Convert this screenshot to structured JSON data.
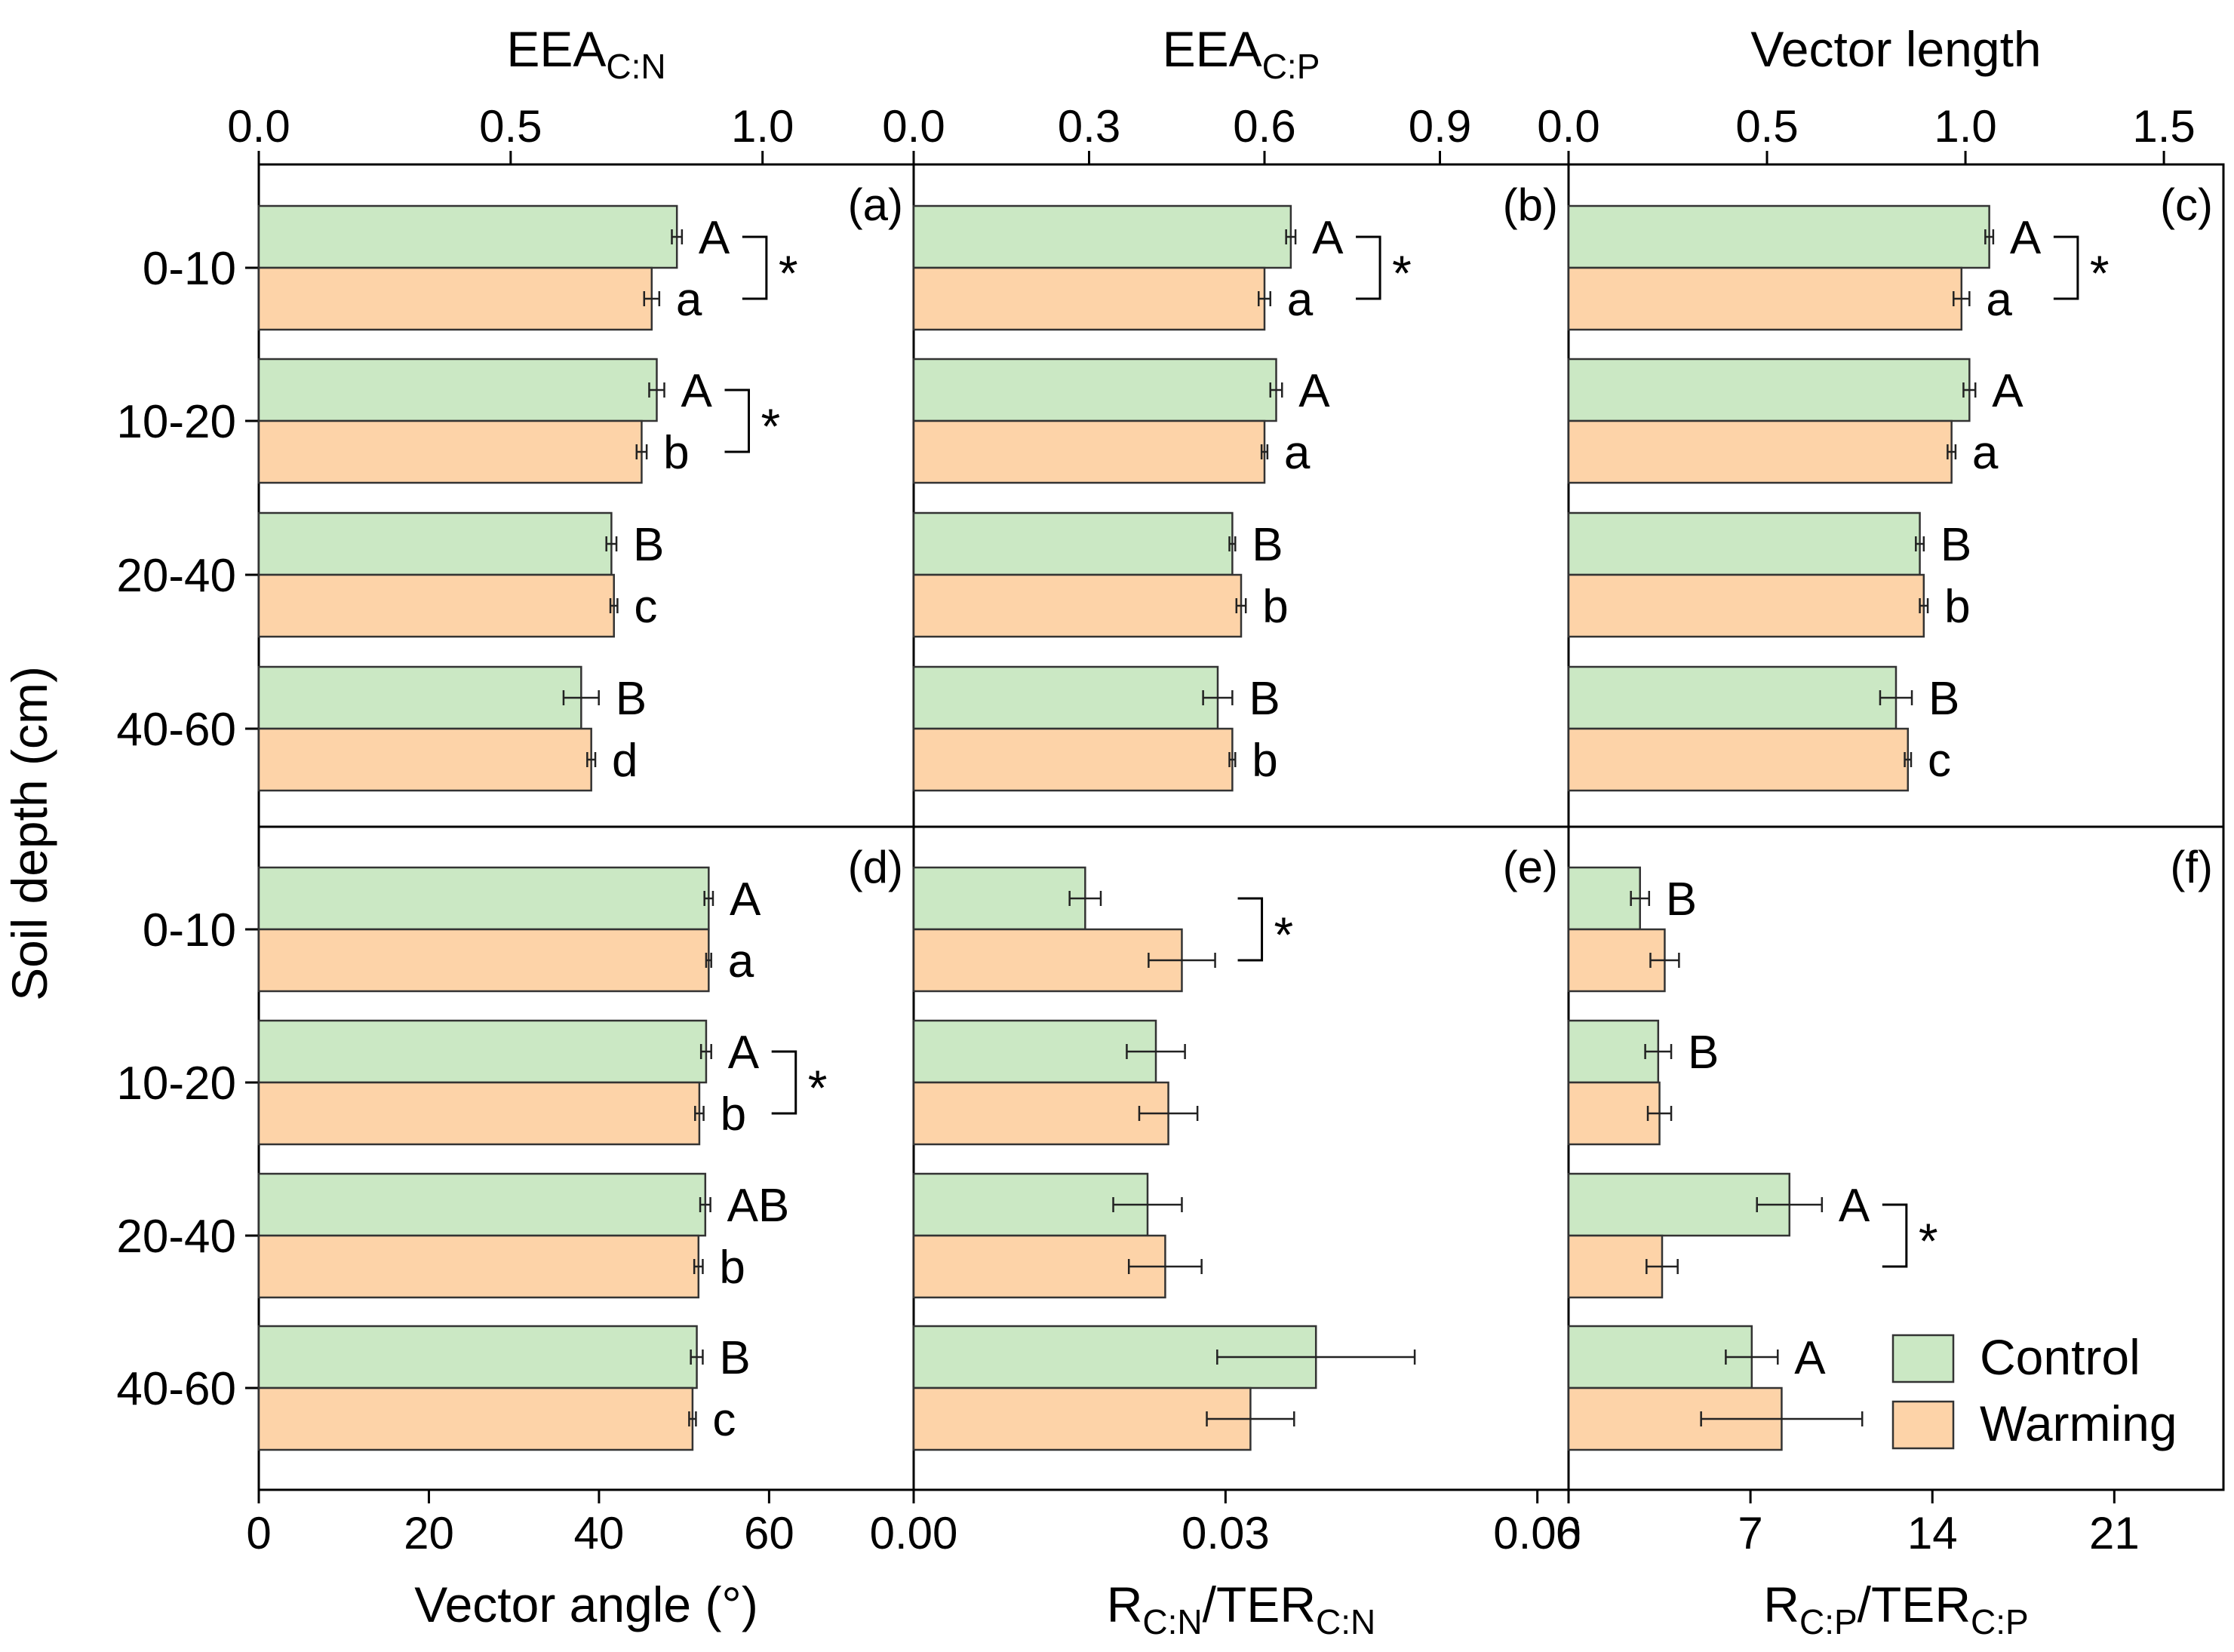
{
  "legend": {
    "items": [
      {
        "label": "Control",
        "color": "#cbe8c4"
      },
      {
        "label": "Warming",
        "color": "#fdd3a8"
      }
    ],
    "placement": "inside panel f, bottom-right"
  },
  "colors": {
    "control": "#cbe8c4",
    "warming": "#fdd3a8"
  },
  "y_axis_label": "Soil depth (cm)",
  "depth_labels": [
    "0-10",
    "10-20",
    "20-40",
    "40-60"
  ],
  "chart_data": [
    {
      "panel": "(a)",
      "type": "bar",
      "orientation": "horizontal",
      "axis_position": "top",
      "xlabel": "EEA",
      "xlabel_sub": "C:N",
      "xlim": [
        0,
        1.3
      ],
      "ticks": [
        0.0,
        0.5,
        1.0
      ],
      "tick_labels": [
        "0.0",
        "0.5",
        "1.0"
      ],
      "categories": [
        "0-10",
        "10-20",
        "20-40",
        "40-60"
      ],
      "series": [
        {
          "name": "Control",
          "values": [
            0.83,
            0.79,
            0.7,
            0.64
          ],
          "errors": [
            0.01,
            0.015,
            0.01,
            0.035
          ],
          "letters": [
            "A",
            "A",
            "B",
            "B"
          ]
        },
        {
          "name": "Warming",
          "values": [
            0.78,
            0.76,
            0.705,
            0.66
          ],
          "errors": [
            0.015,
            0.01,
            0.007,
            0.008
          ],
          "letters": [
            "a",
            "b",
            "c",
            "d"
          ]
        }
      ],
      "significance": [
        "*",
        "*",
        "",
        ""
      ]
    },
    {
      "panel": "(b)",
      "type": "bar",
      "orientation": "horizontal",
      "axis_position": "top",
      "xlabel": "EEA",
      "xlabel_sub": "C:P",
      "xlim": [
        0,
        1.12
      ],
      "ticks": [
        0.0,
        0.3,
        0.6,
        0.9
      ],
      "tick_labels": [
        "0.0",
        "0.3",
        "0.6",
        "0.9"
      ],
      "categories": [
        "0-10",
        "10-20",
        "20-40",
        "40-60"
      ],
      "series": [
        {
          "name": "Control",
          "values": [
            0.645,
            0.62,
            0.545,
            0.52
          ],
          "errors": [
            0.008,
            0.01,
            0.005,
            0.025
          ],
          "letters": [
            "A",
            "A",
            "B",
            "B"
          ]
        },
        {
          "name": "Warming",
          "values": [
            0.6,
            0.6,
            0.56,
            0.545
          ],
          "errors": [
            0.01,
            0.005,
            0.008,
            0.005
          ],
          "letters": [
            "a",
            "a",
            "b",
            "b"
          ]
        }
      ],
      "significance": [
        "*",
        "",
        "",
        ""
      ]
    },
    {
      "panel": "(c)",
      "type": "bar",
      "orientation": "horizontal",
      "axis_position": "top",
      "xlabel": "Vector length",
      "xlim": [
        0,
        1.65
      ],
      "ticks": [
        0.0,
        0.5,
        1.0,
        1.5
      ],
      "tick_labels": [
        "0.0",
        "0.5",
        "1.0",
        "1.5"
      ],
      "categories": [
        "0-10",
        "10-20",
        "20-40",
        "40-60"
      ],
      "series": [
        {
          "name": "Control",
          "values": [
            1.06,
            1.01,
            0.885,
            0.825
          ],
          "errors": [
            0.01,
            0.015,
            0.01,
            0.04
          ],
          "letters": [
            "A",
            "A",
            "B",
            "B"
          ]
        },
        {
          "name": "Warming",
          "values": [
            0.99,
            0.965,
            0.895,
            0.855
          ],
          "errors": [
            0.02,
            0.01,
            0.01,
            0.008
          ],
          "letters": [
            "a",
            "a",
            "b",
            "c"
          ]
        }
      ],
      "significance": [
        "*",
        "",
        "",
        ""
      ]
    },
    {
      "panel": "(d)",
      "type": "bar",
      "orientation": "horizontal",
      "axis_position": "bottom",
      "xlabel": "Vector angle (°)",
      "xlim": [
        0,
        77
      ],
      "ticks": [
        0,
        20,
        40,
        60
      ],
      "tick_labels": [
        "0",
        "20",
        "40",
        "60"
      ],
      "categories": [
        "0-10",
        "10-20",
        "20-40",
        "40-60"
      ],
      "series": [
        {
          "name": "Control",
          "values": [
            52.9,
            52.6,
            52.5,
            51.5
          ],
          "errors": [
            0.5,
            0.6,
            0.6,
            0.7
          ],
          "letters": [
            "A",
            "A",
            "AB",
            "B"
          ]
        },
        {
          "name": "Warming",
          "values": [
            52.9,
            51.8,
            51.7,
            51.0
          ],
          "errors": [
            0.3,
            0.5,
            0.5,
            0.4
          ],
          "letters": [
            "a",
            "b",
            "b",
            "c"
          ]
        }
      ],
      "significance": [
        "",
        "*",
        "",
        ""
      ]
    },
    {
      "panel": "(e)",
      "type": "bar",
      "orientation": "horizontal",
      "axis_position": "bottom",
      "xlabel": "R",
      "xlabel_sub": "C:N",
      "xlabel_mid": "/TER",
      "xlabel_sub2": "C:N",
      "xlim": [
        0,
        0.063
      ],
      "ticks": [
        0.0,
        0.03,
        0.06
      ],
      "tick_labels": [
        "0.00",
        "0.03",
        "0.06"
      ],
      "categories": [
        "0-10",
        "10-20",
        "20-40",
        "40-60"
      ],
      "series": [
        {
          "name": "Control",
          "values": [
            0.0165,
            0.0233,
            0.0225,
            0.0387
          ],
          "errors": [
            0.0015,
            0.0028,
            0.0033,
            0.0095
          ],
          "letters": [
            "",
            "",
            "",
            ""
          ]
        },
        {
          "name": "Warming",
          "values": [
            0.0258,
            0.0245,
            0.0242,
            0.0324
          ],
          "errors": [
            0.0032,
            0.0028,
            0.0035,
            0.0042
          ],
          "letters": [
            "",
            "",
            "",
            ""
          ]
        }
      ],
      "significance": [
        "*",
        "",
        "",
        ""
      ]
    },
    {
      "panel": "(f)",
      "type": "bar",
      "orientation": "horizontal",
      "axis_position": "bottom",
      "xlabel": "R",
      "xlabel_sub": "C:P",
      "xlabel_mid": "/TER",
      "xlabel_sub2": "C:P",
      "xlim": [
        0,
        25.2
      ],
      "ticks": [
        0,
        7,
        14,
        21
      ],
      "tick_labels": [
        "0",
        "7",
        "14",
        "21"
      ],
      "categories": [
        "0-10",
        "10-20",
        "20-40",
        "40-60"
      ],
      "series": [
        {
          "name": "Control",
          "values": [
            2.75,
            3.45,
            8.5,
            7.05
          ],
          "errors": [
            0.35,
            0.5,
            1.25,
            1.0
          ],
          "letters": [
            "B",
            "B",
            "A",
            "A"
          ]
        },
        {
          "name": "Warming",
          "values": [
            3.7,
            3.5,
            3.6,
            8.2
          ],
          "errors": [
            0.55,
            0.45,
            0.6,
            3.1
          ],
          "letters": [
            "",
            "",
            "",
            ""
          ]
        }
      ],
      "significance": [
        "",
        "",
        "*",
        ""
      ]
    }
  ]
}
